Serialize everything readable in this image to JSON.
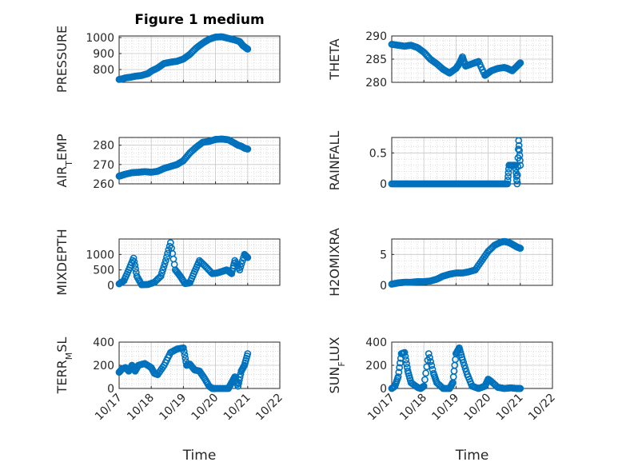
{
  "figure": {
    "title": "Figure 1 medium"
  },
  "colors": {
    "marker": "#0072BD",
    "axis": "#262626",
    "grid": "#c8c8c8"
  },
  "chart_data": [
    {
      "type": "scatter",
      "title": "Figure 1 medium",
      "ylabel": "PRESSURE",
      "xlabel": "",
      "xlim": [
        "10/17",
        "10/22"
      ],
      "x_ticks": [
        "10/17",
        "10/18",
        "10/19",
        "10/20",
        "10/21",
        "10/22"
      ],
      "ylim": [
        720,
        1010
      ],
      "y_ticks": [
        "800",
        "900",
        "1000"
      ],
      "grid": true,
      "x": [
        17.0,
        17.1,
        17.2,
        17.35,
        17.5,
        17.7,
        17.9,
        18.0,
        18.2,
        18.4,
        18.6,
        18.8,
        19.0,
        19.2,
        19.4,
        19.6,
        19.8,
        20.0,
        20.2,
        20.4,
        20.6,
        20.75,
        20.85,
        20.95,
        21.0
      ],
      "y": [
        738,
        742,
        748,
        752,
        758,
        763,
        775,
        790,
        810,
        838,
        846,
        852,
        866,
        895,
        935,
        965,
        990,
        1003,
        1005,
        995,
        985,
        975,
        950,
        935,
        928
      ]
    },
    {
      "type": "scatter",
      "ylabel": "THETA",
      "xlabel": "",
      "xlim": [
        "10/17",
        "10/22"
      ],
      "x_ticks": [
        "10/17",
        "10/18",
        "10/19",
        "10/20",
        "10/21",
        "10/22"
      ],
      "ylim": [
        280,
        290
      ],
      "y_ticks": [
        "280",
        "285",
        "290"
      ],
      "grid": true,
      "x": [
        17.0,
        17.2,
        17.4,
        17.6,
        17.8,
        18.0,
        18.2,
        18.4,
        18.6,
        18.8,
        19.0,
        19.1,
        19.2,
        19.3,
        19.5,
        19.7,
        19.9,
        20.0,
        20.1,
        20.3,
        20.5,
        20.6,
        20.75,
        20.9,
        21.0
      ],
      "y": [
        288.2,
        288.0,
        287.8,
        288.0,
        287.5,
        286.5,
        285.0,
        284.0,
        282.8,
        282.0,
        283.0,
        284.0,
        285.5,
        283.5,
        284.0,
        284.5,
        281.5,
        282.0,
        282.5,
        283.0,
        283.2,
        283.0,
        282.5,
        283.5,
        284.2
      ]
    },
    {
      "type": "scatter",
      "ylabel": "AIR_TEMP",
      "xlabel": "",
      "xlim": [
        "10/17",
        "10/22"
      ],
      "x_ticks": [
        "10/17",
        "10/18",
        "10/19",
        "10/20",
        "10/21",
        "10/22"
      ],
      "ylim": [
        260,
        284
      ],
      "y_ticks": [
        "260",
        "270",
        "280"
      ],
      "grid": true,
      "x": [
        17.0,
        17.1,
        17.2,
        17.4,
        17.6,
        17.8,
        18.0,
        18.2,
        18.4,
        18.6,
        18.8,
        19.0,
        19.2,
        19.4,
        19.6,
        19.8,
        20.0,
        20.2,
        20.4,
        20.6,
        20.7,
        20.8,
        20.9,
        21.0
      ],
      "y": [
        264.0,
        264.5,
        265.0,
        265.8,
        266.0,
        266.3,
        266.0,
        266.5,
        268.0,
        269.0,
        270.0,
        272.0,
        276.0,
        279.0,
        281.5,
        282.0,
        283.0,
        283.2,
        282.8,
        281.0,
        280.0,
        279.5,
        278.5,
        278.0
      ]
    },
    {
      "type": "scatter",
      "ylabel": "RAINFALL",
      "xlabel": "",
      "xlim": [
        "10/17",
        "10/22"
      ],
      "x_ticks": [
        "10/17",
        "10/18",
        "10/19",
        "10/20",
        "10/21",
        "10/22"
      ],
      "ylim": [
        0,
        0.75
      ],
      "y_ticks": [
        "0",
        "0.5"
      ],
      "grid": true,
      "x": [
        17.0,
        17.2,
        17.4,
        17.6,
        17.8,
        18.0,
        18.2,
        18.4,
        18.6,
        18.8,
        19.0,
        19.2,
        19.4,
        19.6,
        19.8,
        20.0,
        20.2,
        20.4,
        20.6,
        20.65,
        20.75,
        20.85,
        20.9,
        20.95,
        21.0
      ],
      "y": [
        0,
        0,
        0,
        0,
        0,
        0,
        0,
        0,
        0,
        0,
        0,
        0,
        0,
        0,
        0,
        0,
        0,
        0,
        0,
        0.3,
        0.3,
        0.3,
        0.0,
        0.7,
        0.3
      ]
    },
    {
      "type": "scatter",
      "ylabel": "MIXDEPTH",
      "xlabel": "",
      "xlim": [
        "10/17",
        "10/22"
      ],
      "x_ticks": [
        "10/17",
        "10/18",
        "10/19",
        "10/20",
        "10/21",
        "10/22"
      ],
      "ylim": [
        0,
        1500
      ],
      "y_ticks": [
        "0",
        "500",
        "1000"
      ],
      "grid": true,
      "x": [
        17.0,
        17.15,
        17.3,
        17.45,
        17.55,
        17.7,
        17.9,
        18.1,
        18.3,
        18.45,
        18.6,
        18.75,
        18.9,
        19.05,
        19.2,
        19.35,
        19.5,
        19.7,
        19.9,
        20.05,
        20.2,
        20.35,
        20.5,
        20.6,
        20.75,
        20.9,
        21.0
      ],
      "y": [
        50,
        150,
        500,
        880,
        300,
        20,
        30,
        100,
        300,
        800,
        1380,
        500,
        300,
        60,
        80,
        450,
        800,
        600,
        380,
        400,
        450,
        500,
        380,
        800,
        500,
        1000,
        900
      ]
    },
    {
      "type": "scatter",
      "ylabel": "H2OMIXRA",
      "xlabel": "",
      "xlim": [
        "10/17",
        "10/22"
      ],
      "x_ticks": [
        "10/17",
        "10/18",
        "10/19",
        "10/20",
        "10/21",
        "10/22"
      ],
      "ylim": [
        0,
        7.5
      ],
      "y_ticks": [
        "0",
        "5"
      ],
      "grid": true,
      "x": [
        17.0,
        17.2,
        17.4,
        17.6,
        17.8,
        18.0,
        18.2,
        18.4,
        18.6,
        18.8,
        19.0,
        19.2,
        19.4,
        19.6,
        19.8,
        20.0,
        20.2,
        20.4,
        20.5,
        20.6,
        20.7,
        20.8,
        20.9,
        21.0
      ],
      "y": [
        0.2,
        0.4,
        0.5,
        0.5,
        0.6,
        0.6,
        0.7,
        1.0,
        1.5,
        1.8,
        2.0,
        2.0,
        2.2,
        2.5,
        4.0,
        5.5,
        6.5,
        7.0,
        7.1,
        7.0,
        6.8,
        6.5,
        6.2,
        6.0
      ]
    },
    {
      "type": "scatter",
      "ylabel": "TERR_MSL",
      "xlabel": "Time",
      "xlim": [
        "10/17",
        "10/22"
      ],
      "x_ticks": [
        "10/17",
        "10/18",
        "10/19",
        "10/20",
        "10/21",
        "10/22"
      ],
      "ylim": [
        0,
        400
      ],
      "y_ticks": [
        "0",
        "200",
        "400"
      ],
      "grid": true,
      "x": [
        17.0,
        17.1,
        17.2,
        17.3,
        17.4,
        17.5,
        17.6,
        17.8,
        18.0,
        18.1,
        18.2,
        18.4,
        18.6,
        18.8,
        19.0,
        19.1,
        19.2,
        19.35,
        19.5,
        19.65,
        19.8,
        19.9,
        20.0,
        20.2,
        20.4,
        20.5,
        20.6,
        20.7,
        20.8,
        20.9,
        21.0
      ],
      "y": [
        140,
        170,
        180,
        150,
        200,
        150,
        200,
        215,
        180,
        130,
        120,
        200,
        310,
        340,
        350,
        200,
        210,
        160,
        150,
        90,
        20,
        0,
        0,
        0,
        0,
        50,
        100,
        20,
        150,
        200,
        300
      ]
    },
    {
      "type": "scatter",
      "ylabel": "SUN_FLUX",
      "xlabel": "Time",
      "xlim": [
        "10/17",
        "10/22"
      ],
      "x_ticks": [
        "10/17",
        "10/18",
        "10/19",
        "10/20",
        "10/21",
        "10/22"
      ],
      "ylim": [
        0,
        400
      ],
      "y_ticks": [
        "0",
        "200",
        "400"
      ],
      "grid": true,
      "x": [
        17.0,
        17.1,
        17.2,
        17.3,
        17.4,
        17.5,
        17.6,
        17.8,
        17.9,
        18.0,
        18.15,
        18.3,
        18.4,
        18.6,
        18.8,
        18.9,
        19.0,
        19.1,
        19.2,
        19.35,
        19.5,
        19.7,
        19.9,
        20.0,
        20.1,
        20.3,
        20.5,
        20.7,
        20.9,
        21.0
      ],
      "y": [
        0,
        20,
        100,
        300,
        310,
        150,
        50,
        10,
        0,
        20,
        300,
        130,
        50,
        0,
        0,
        50,
        300,
        350,
        250,
        120,
        20,
        0,
        20,
        80,
        60,
        10,
        0,
        5,
        0,
        0
      ]
    }
  ]
}
